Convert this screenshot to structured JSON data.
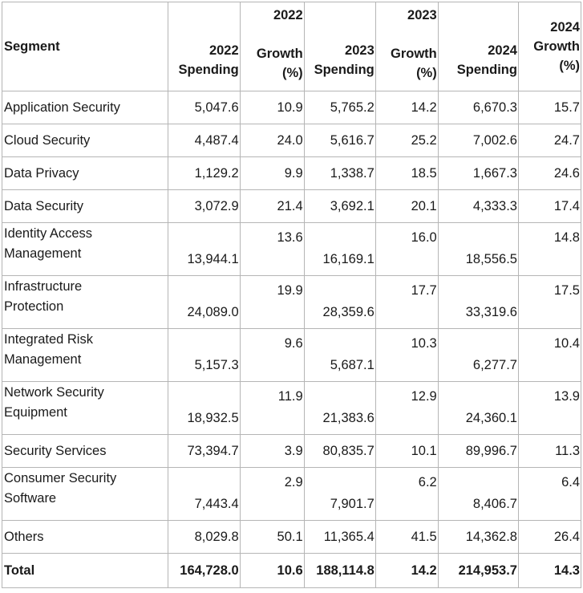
{
  "headers": {
    "segment": "Segment",
    "spending_2022": [
      "2022",
      "Spending"
    ],
    "growth_2022": [
      "2022",
      "Growth",
      "(%)"
    ],
    "spending_2023": [
      "2023",
      "Spending"
    ],
    "growth_2023": [
      "2023",
      "Growth",
      "(%)"
    ],
    "spending_2024": [
      "2024",
      "Spending"
    ],
    "growth_2024": [
      "2024",
      "Growth",
      "(%)"
    ]
  },
  "rows": [
    {
      "segment": [
        "Application Security"
      ],
      "s2022": "5,047.6",
      "g2022": "10.9",
      "s2023": "5,765.2",
      "g2023": "14.2",
      "s2024": "6,670.3",
      "g2024": "15.7"
    },
    {
      "segment": [
        "Cloud Security"
      ],
      "s2022": "4,487.4",
      "g2022": "24.0",
      "s2023": "5,616.7",
      "g2023": "25.2",
      "s2024": "7,002.6",
      "g2024": "24.7"
    },
    {
      "segment": [
        "Data Privacy"
      ],
      "s2022": "1,129.2",
      "g2022": "9.9",
      "s2023": "1,338.7",
      "g2023": "18.5",
      "s2024": "1,667.3",
      "g2024": "24.6"
    },
    {
      "segment": [
        "Data Security"
      ],
      "s2022": "3,072.9",
      "g2022": "21.4",
      "s2023": "3,692.1",
      "g2023": "20.1",
      "s2024": "4,333.3",
      "g2024": "17.4"
    },
    {
      "segment": [
        "Identity Access",
        "Management"
      ],
      "s2022": "13,944.1",
      "g2022": "13.6",
      "s2023": "16,169.1",
      "g2023": "16.0",
      "s2024": "18,556.5",
      "g2024": "14.8"
    },
    {
      "segment": [
        "Infrastructure",
        "Protection"
      ],
      "s2022": "24,089.0",
      "g2022": "19.9",
      "s2023": "28,359.6",
      "g2023": "17.7",
      "s2024": "33,319.6",
      "g2024": "17.5"
    },
    {
      "segment": [
        "Integrated Risk",
        "Management"
      ],
      "s2022": "5,157.3",
      "g2022": "9.6",
      "s2023": "5,687.1",
      "g2023": "10.3",
      "s2024": "6,277.7",
      "g2024": "10.4"
    },
    {
      "segment": [
        "Network Security",
        "Equipment"
      ],
      "s2022": "18,932.5",
      "g2022": "11.9",
      "s2023": "21,383.6",
      "g2023": "12.9",
      "s2024": "24,360.1",
      "g2024": "13.9"
    },
    {
      "segment": [
        "Security Services"
      ],
      "s2022": "73,394.7",
      "g2022": "3.9",
      "s2023": "80,835.7",
      "g2023": "10.1",
      "s2024": "89,996.7",
      "g2024": "11.3"
    },
    {
      "segment": [
        "Consumer Security",
        "Software"
      ],
      "s2022": "7,443.4",
      "g2022": "2.9",
      "s2023": "7,901.7",
      "g2023": "6.2",
      "s2024": "8,406.7",
      "g2024": "6.4"
    },
    {
      "segment": [
        "Others"
      ],
      "s2022": "8,029.8",
      "g2022": "50.1",
      "s2023": "11,365.4",
      "g2023": "41.5",
      "s2024": "14,362.8",
      "g2024": "26.4"
    }
  ],
  "total": {
    "segment": [
      "Total"
    ],
    "s2022": "164,728.0",
    "g2022": "10.6",
    "s2023": "188,114.8",
    "g2023": "14.2",
    "s2024": "214,953.7",
    "g2024": "14.3"
  }
}
